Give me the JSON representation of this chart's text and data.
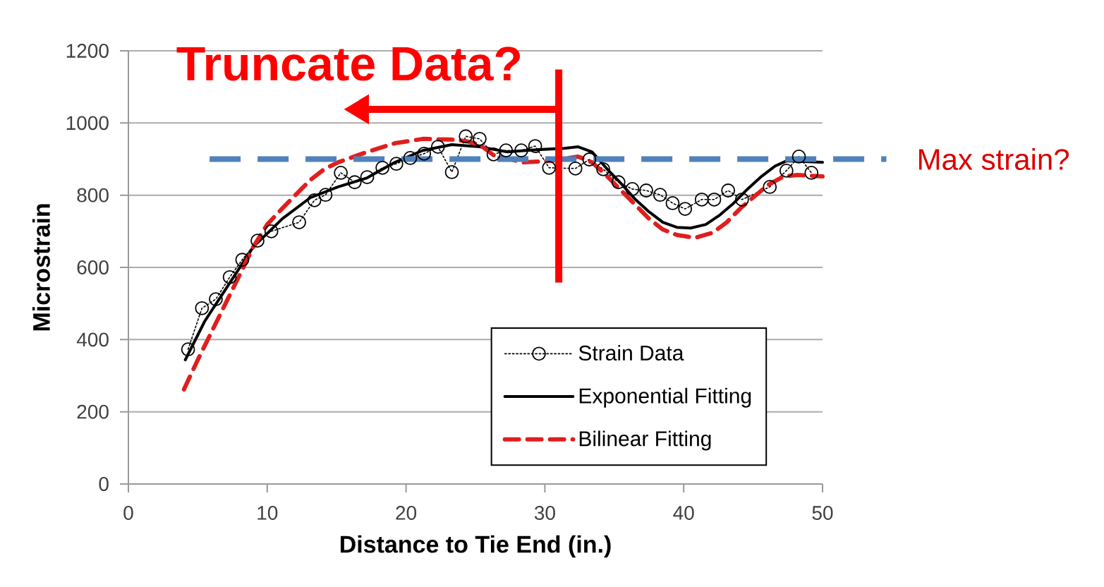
{
  "chart_data": {
    "type": "line",
    "xlabel": "Distance to Tie End (in.)",
    "ylabel": "Microstrain",
    "xlim": [
      0,
      50
    ],
    "ylim": [
      0,
      1200
    ],
    "xticks": [
      0,
      10,
      20,
      30,
      40,
      50
    ],
    "yticks": [
      0,
      200,
      400,
      600,
      800,
      1000,
      1200
    ],
    "grid": "y",
    "legend": "bottom right",
    "series": [
      {
        "name": "Strain Data",
        "color": "#000000",
        "marker": "circle",
        "line_style": "dotted",
        "x": [
          4.3,
          5.3,
          6.3,
          7.3,
          8.2,
          9.3,
          10.3,
          12.3,
          13.4,
          14.2,
          15.3,
          16.3,
          17.2,
          18.3,
          19.3,
          20.3,
          21.3,
          22.3,
          23.3,
          24.3,
          25.3,
          26.3,
          27.2,
          28.3,
          29.3,
          30.3,
          32.2,
          33.2,
          34.2,
          35.3,
          36.3,
          37.3,
          38.3,
          39.2,
          40.1,
          41.3,
          42.2,
          43.2,
          44.2,
          46.2,
          47.4,
          48.3,
          49.2
        ],
        "values": [
          373,
          487,
          512,
          573,
          621,
          674,
          700,
          725,
          786,
          801,
          862,
          836,
          850,
          876,
          887,
          903,
          915,
          934,
          864,
          963,
          956,
          913,
          924,
          924,
          936,
          876,
          874,
          899,
          872,
          836,
          817,
          813,
          801,
          778,
          762,
          788,
          788,
          813,
          788,
          823,
          868,
          907,
          862
        ]
      },
      {
        "name": "Exponential Fitting",
        "color": "#000000",
        "marker": "none",
        "line_style": "solid",
        "x": [
          4.1,
          5.5,
          7,
          9,
          11.1,
          13.1,
          15.1,
          17.2,
          19.2,
          21.2,
          23.3,
          25.3,
          27.3,
          29.4,
          31.4,
          32.4,
          33.4,
          34.5,
          35.5,
          36.5,
          37.5,
          38.5,
          39.5,
          40.5,
          41.6,
          42.6,
          43.6,
          44.6,
          45.6,
          46.6,
          47.4,
          50
        ],
        "values": [
          344,
          451,
          539,
          657,
          735,
          793,
          823,
          848,
          891,
          924,
          940,
          934,
          920,
          926,
          930,
          934,
          920,
          872,
          832,
          789,
          754,
          725,
          711,
          709,
          719,
          745,
          778,
          817,
          852,
          881,
          895,
          891
        ]
      },
      {
        "name": "Bilinear Fitting",
        "color": "#e01e1e",
        "marker": "none",
        "line_style": "dashed",
        "x": [
          4,
          5,
          6,
          7,
          8,
          9,
          10,
          11.1,
          12.1,
          13.1,
          14.1,
          15.1,
          17.2,
          19.2,
          21.2,
          23.3,
          24.3,
          25.3,
          26.3,
          28.4,
          30.4,
          32.4,
          33.4,
          34.5,
          35.5,
          36.5,
          37.5,
          38.5,
          39.5,
          40.8,
          42.1,
          43.1,
          44.1,
          45.1,
          46.1,
          47.2,
          48.2,
          50
        ],
        "values": [
          262,
          344,
          422,
          500,
          578,
          657,
          719,
          764,
          803,
          842,
          872,
          891,
          920,
          944,
          956,
          954,
          950,
          940,
          911,
          891,
          895,
          907,
          891,
          852,
          813,
          774,
          735,
          705,
          690,
          682,
          696,
          725,
          764,
          797,
          829,
          852,
          856,
          852
        ]
      }
    ],
    "ref_lines": [
      {
        "axis": "y",
        "value": 900,
        "label": "Max strain?",
        "color": "#4f81bd",
        "line_style": "dashed"
      },
      {
        "axis": "x",
        "value": 31,
        "label": "Truncate Data?",
        "color": "#ff0000",
        "line_style": "solid"
      }
    ]
  }
}
